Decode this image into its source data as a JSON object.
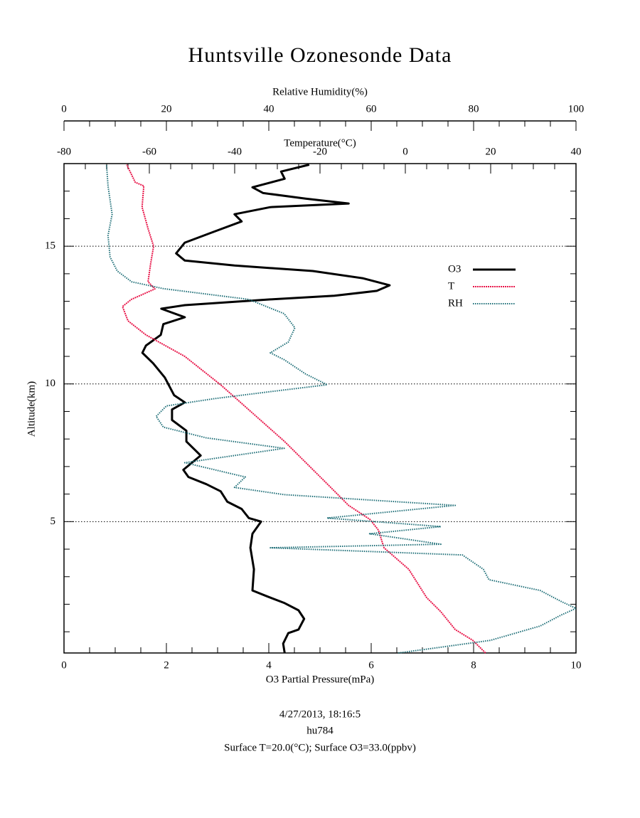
{
  "chart_data": {
    "type": "line",
    "title": "Huntsville Ozonesonde Data",
    "ylabel": "Altitude(km)",
    "ylim": [
      0.23,
      18
    ],
    "yticks": [
      5,
      10,
      15
    ],
    "y_minor_ticks": [
      1,
      2,
      3,
      4,
      6,
      7,
      8,
      9,
      11,
      12,
      13,
      14,
      16,
      17
    ],
    "grid": true,
    "axes": {
      "o3": {
        "position": "bottom",
        "label": "O3 Partial Pressure(mPa)",
        "xlim": [
          0,
          10
        ],
        "xticks": [
          0,
          2,
          4,
          6,
          8,
          10
        ],
        "minor_ticks": [
          0.5,
          1,
          1.5,
          2.5,
          3,
          3.5,
          4.5,
          5,
          5.5,
          6.5,
          7,
          7.5,
          8.5,
          9,
          9.5
        ]
      },
      "temperature": {
        "position": "top",
        "label": "Temperature(°C)",
        "xlim": [
          -80,
          40
        ],
        "xticks": [
          -80,
          -60,
          -40,
          -20,
          0,
          20,
          40
        ],
        "minor_ticks": [
          -75,
          -70,
          -65,
          -55,
          -50,
          -45,
          -35,
          -30,
          -25,
          -15,
          -10,
          -5,
          5,
          10,
          15,
          25,
          30,
          35
        ]
      },
      "rh": {
        "position": "outer-top",
        "label": "Relative Humidity(%)",
        "xlim": [
          0,
          100
        ],
        "xticks": [
          0,
          20,
          40,
          60,
          80,
          100
        ],
        "minor_ticks": [
          5,
          10,
          15,
          25,
          30,
          35,
          45,
          50,
          55,
          65,
          70,
          75,
          85,
          90,
          95
        ]
      }
    },
    "series": [
      {
        "name": "O3",
        "color": "#000000",
        "axis": "o3",
        "values": [
          4.31,
          4.28,
          4.38,
          4.58,
          4.69,
          4.58,
          4.31,
          3.96,
          3.68,
          3.71,
          3.64,
          3.68,
          3.85,
          3.61,
          3.47,
          3.19,
          3.06,
          2.78,
          2.43,
          2.33,
          2.67,
          2.39,
          2.39,
          2.11,
          2.11,
          2.36,
          2.15,
          1.97,
          1.74,
          1.53,
          1.6,
          1.89,
          1.94,
          2.36,
          1.9,
          2.36,
          4.03,
          5.28,
          6.11,
          6.36,
          5.83,
          4.86,
          3.33,
          2.36,
          2.19,
          2.36,
          2.92,
          3.47,
          3.33,
          4.03,
          5.56,
          4.72,
          3.89,
          3.68,
          4.31,
          4.24,
          4.79
        ],
        "altitude": [
          0.23,
          0.57,
          0.95,
          1.08,
          1.47,
          1.78,
          2.04,
          2.29,
          2.5,
          3.27,
          4.05,
          4.56,
          5.0,
          5.13,
          5.46,
          5.72,
          6.1,
          6.36,
          6.62,
          6.88,
          7.4,
          7.91,
          8.3,
          8.69,
          9.07,
          9.33,
          9.59,
          10.23,
          10.75,
          11.13,
          11.39,
          11.78,
          12.17,
          12.42,
          12.73,
          12.86,
          13.07,
          13.2,
          13.38,
          13.58,
          13.84,
          14.1,
          14.3,
          14.48,
          14.74,
          15.13,
          15.52,
          15.9,
          16.16,
          16.42,
          16.55,
          16.73,
          16.93,
          17.14,
          17.45,
          17.71,
          17.96
        ]
      },
      {
        "name": "T",
        "color": "#e8174a",
        "axis": "temperature",
        "values": [
          18.8,
          15.8,
          11.7,
          8.3,
          5.0,
          0.8,
          -5,
          -6.3,
          -8.3,
          -13.3,
          -18.3,
          -28.3,
          -35.8,
          -43.3,
          -51.7,
          -60.8,
          -65,
          -66.3,
          -64.2,
          -58.7,
          -60.3,
          -59.7,
          -59,
          -60.3,
          -61.7,
          -61.3,
          -63.3,
          -65.3
        ],
        "altitude": [
          0.23,
          0.69,
          1.08,
          1.73,
          2.24,
          3.27,
          4.05,
          4.69,
          5.08,
          5.59,
          6.37,
          7.91,
          8.94,
          9.97,
          11.0,
          11.78,
          12.29,
          12.81,
          13.07,
          13.45,
          13.71,
          14.36,
          15.0,
          15.64,
          16.42,
          17.19,
          17.32,
          17.96
        ]
      },
      {
        "name": "RH",
        "color": "#1f6f78",
        "axis": "rh",
        "values": [
          65.3,
          73.6,
          83.3,
          93,
          97,
          100,
          97,
          93,
          83,
          81.9,
          77.8,
          40.3,
          73.6,
          59.7,
          73.6,
          51.4,
          76.4,
          43,
          33.3,
          35.4,
          23.6,
          43,
          27.8,
          19.4,
          18,
          20,
          29.2,
          40.3,
          51.4,
          47.2,
          43,
          40.3,
          43.8,
          45.1,
          43,
          36.1,
          19.4,
          13.2,
          10.4,
          9,
          8.6,
          9.4,
          8.6,
          8.3
        ],
        "altitude": [
          0.23,
          0.44,
          0.69,
          1.21,
          1.6,
          1.85,
          2.11,
          2.5,
          2.89,
          3.27,
          3.79,
          4.05,
          4.18,
          4.56,
          4.82,
          5.13,
          5.59,
          5.98,
          6.24,
          6.62,
          7.14,
          7.66,
          8.04,
          8.43,
          8.82,
          9.2,
          9.46,
          9.72,
          9.97,
          10.36,
          10.88,
          11.13,
          11.52,
          12.04,
          12.55,
          13.07,
          13.46,
          13.71,
          14.1,
          14.61,
          15.39,
          16.16,
          17.19,
          17.96
        ]
      }
    ],
    "footer": [
      "4/27/2013, 18:16:5",
      "hu784",
      "Surface T=20.0(°C); Surface O3=33.0(ppbv)"
    ]
  }
}
